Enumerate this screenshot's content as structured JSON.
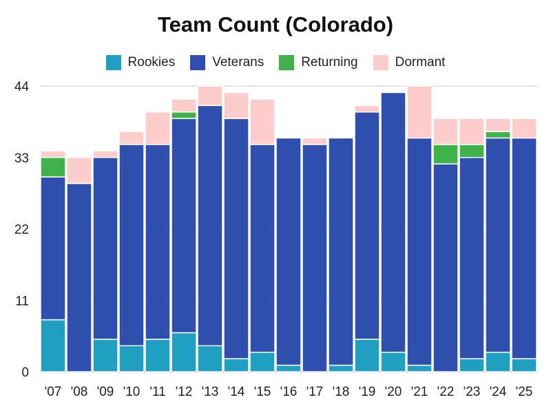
{
  "chart_data": {
    "type": "bar",
    "stacked": true,
    "title": "Team Count (Colorado)",
    "xlabel": "",
    "ylabel": "",
    "ylim": [
      0,
      44
    ],
    "yticks": [
      0,
      11,
      22,
      33,
      44
    ],
    "grid": true,
    "legend_position": "top",
    "categories": [
      "'07",
      "'08",
      "'09",
      "'10",
      "'11",
      "'12",
      "'13",
      "'14",
      "'15",
      "'16",
      "'17",
      "'18",
      "'19",
      "'20",
      "'21",
      "'22",
      "'23",
      "'24",
      "'25"
    ],
    "series": [
      {
        "name": "Rookies",
        "color": "#1fa0c0",
        "values": [
          8,
          0,
          5,
          4,
          5,
          6,
          4,
          2,
          3,
          1,
          0,
          1,
          5,
          3,
          1,
          0,
          2,
          3,
          2
        ]
      },
      {
        "name": "Veterans",
        "color": "#2f4fae",
        "values": [
          22,
          29,
          28,
          31,
          30,
          33,
          37,
          37,
          32,
          35,
          35,
          35,
          35,
          40,
          35,
          32,
          31,
          33,
          34
        ]
      },
      {
        "name": "Returning",
        "color": "#3fb34a",
        "values": [
          3,
          0,
          0,
          0,
          0,
          1,
          0,
          0,
          0,
          0,
          0,
          0,
          0,
          0,
          0,
          3,
          2,
          1,
          0
        ]
      },
      {
        "name": "Dormant",
        "color": "#ffcccc",
        "values": [
          1,
          4,
          1,
          2,
          5,
          2,
          3,
          4,
          7,
          0,
          1,
          0,
          1,
          0,
          8,
          4,
          4,
          2,
          3
        ]
      }
    ]
  }
}
